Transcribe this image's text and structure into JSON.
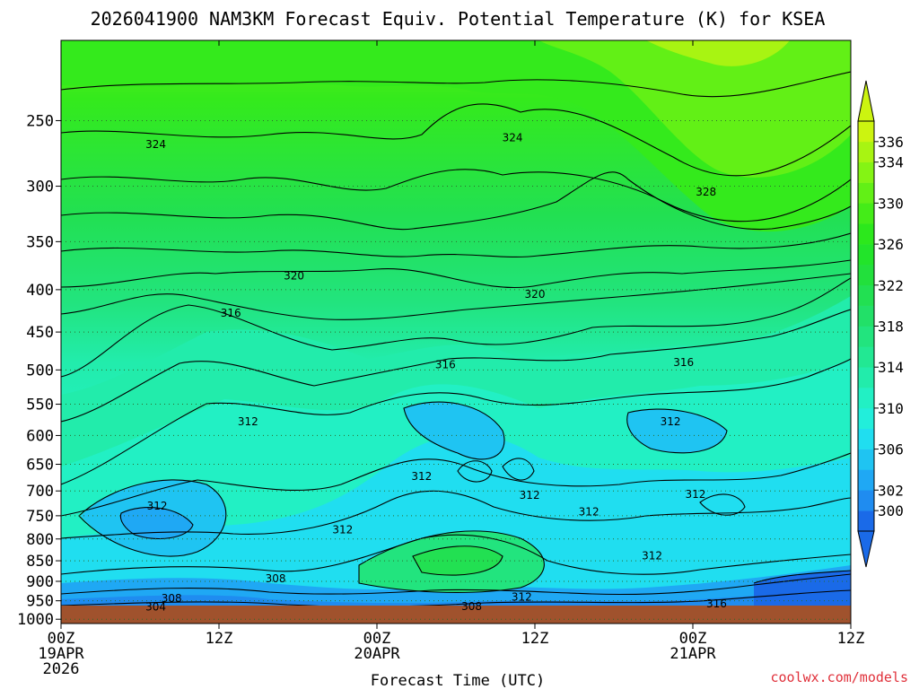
{
  "chart_data": {
    "type": "heatmap",
    "title": "2026041900 NAM3KM Forecast Equiv. Potential Temperature (K) for KSEA",
    "xlabel": "Forecast Time (UTC)",
    "ylabel": "",
    "x_ticks": [
      {
        "hour": 0,
        "line1": "00Z",
        "line2": "19APR",
        "line3": "2026"
      },
      {
        "hour": 12,
        "line1": "12Z",
        "line2": "",
        "line3": ""
      },
      {
        "hour": 24,
        "line1": "00Z",
        "line2": "20APR",
        "line3": ""
      },
      {
        "hour": 36,
        "line1": "12Z",
        "line2": "",
        "line3": ""
      },
      {
        "hour": 48,
        "line1": "00Z",
        "line2": "21APR",
        "line3": ""
      },
      {
        "hour": 60,
        "line1": "12Z",
        "line2": "",
        "line3": ""
      }
    ],
    "xlim": [
      0,
      60
    ],
    "y_ticks": [
      250,
      300,
      350,
      400,
      450,
      500,
      550,
      600,
      650,
      700,
      750,
      800,
      850,
      900,
      950,
      1000
    ],
    "ylim_hPa": [
      1012,
      200
    ],
    "y_scale": "log-pressure",
    "grid": "dotted horizontal at pressure levels",
    "colorbar": {
      "label_values": [
        "300",
        "302",
        "306",
        "310",
        "314",
        "318",
        "322",
        "326",
        "330",
        "334",
        "336"
      ],
      "bounds": [
        298,
        300,
        302,
        304,
        306,
        308,
        310,
        312,
        314,
        316,
        318,
        320,
        322,
        324,
        326,
        328,
        330,
        332,
        334,
        336,
        338
      ],
      "colors": [
        "#1a6ae8",
        "#1f8cf0",
        "#1fa8f4",
        "#1fc4f2",
        "#20def0",
        "#22eedb",
        "#22f0c4",
        "#22ecab",
        "#22e893",
        "#22e47e",
        "#22e068",
        "#22e052",
        "#22e03c",
        "#22e42a",
        "#2ce81c",
        "#44ec18",
        "#62f016",
        "#84f414",
        "#a8f412",
        "#ccf410"
      ],
      "extend": "both"
    },
    "contour_labels": [
      {
        "text": "324",
        "hour": 7.2,
        "p": 267
      },
      {
        "text": "324",
        "hour": 34.3,
        "p": 262
      },
      {
        "text": "328",
        "hour": 49.0,
        "p": 305
      },
      {
        "text": "320",
        "hour": 17.7,
        "p": 385
      },
      {
        "text": "320",
        "hour": 36.0,
        "p": 405
      },
      {
        "text": "316",
        "hour": 12.9,
        "p": 427
      },
      {
        "text": "316",
        "hour": 29.2,
        "p": 493
      },
      {
        "text": "316",
        "hour": 47.3,
        "p": 490
      },
      {
        "text": "312",
        "hour": 14.2,
        "p": 577
      },
      {
        "text": "312",
        "hour": 27.4,
        "p": 672
      },
      {
        "text": "312",
        "hour": 46.3,
        "p": 577
      },
      {
        "text": "312",
        "hour": 7.3,
        "p": 730
      },
      {
        "text": "312",
        "hour": 21.4,
        "p": 780
      },
      {
        "text": "312",
        "hour": 35.6,
        "p": 708
      },
      {
        "text": "312",
        "hour": 40.1,
        "p": 742
      },
      {
        "text": "312",
        "hour": 48.2,
        "p": 707
      },
      {
        "text": "312",
        "hour": 44.9,
        "p": 838
      },
      {
        "text": "308",
        "hour": 16.3,
        "p": 893
      },
      {
        "text": "308",
        "hour": 8.4,
        "p": 944
      },
      {
        "text": "304",
        "hour": 7.2,
        "p": 966
      },
      {
        "text": "308",
        "hour": 31.2,
        "p": 965
      },
      {
        "text": "312",
        "hour": 35.0,
        "p": 940
      },
      {
        "text": "316",
        "hour": 49.8,
        "p": 958
      }
    ]
  },
  "credit": "coolwx.com/models",
  "colors": {
    "terrain": "#a0522d",
    "contour": "#000000",
    "grid": "#2c6b2c"
  }
}
